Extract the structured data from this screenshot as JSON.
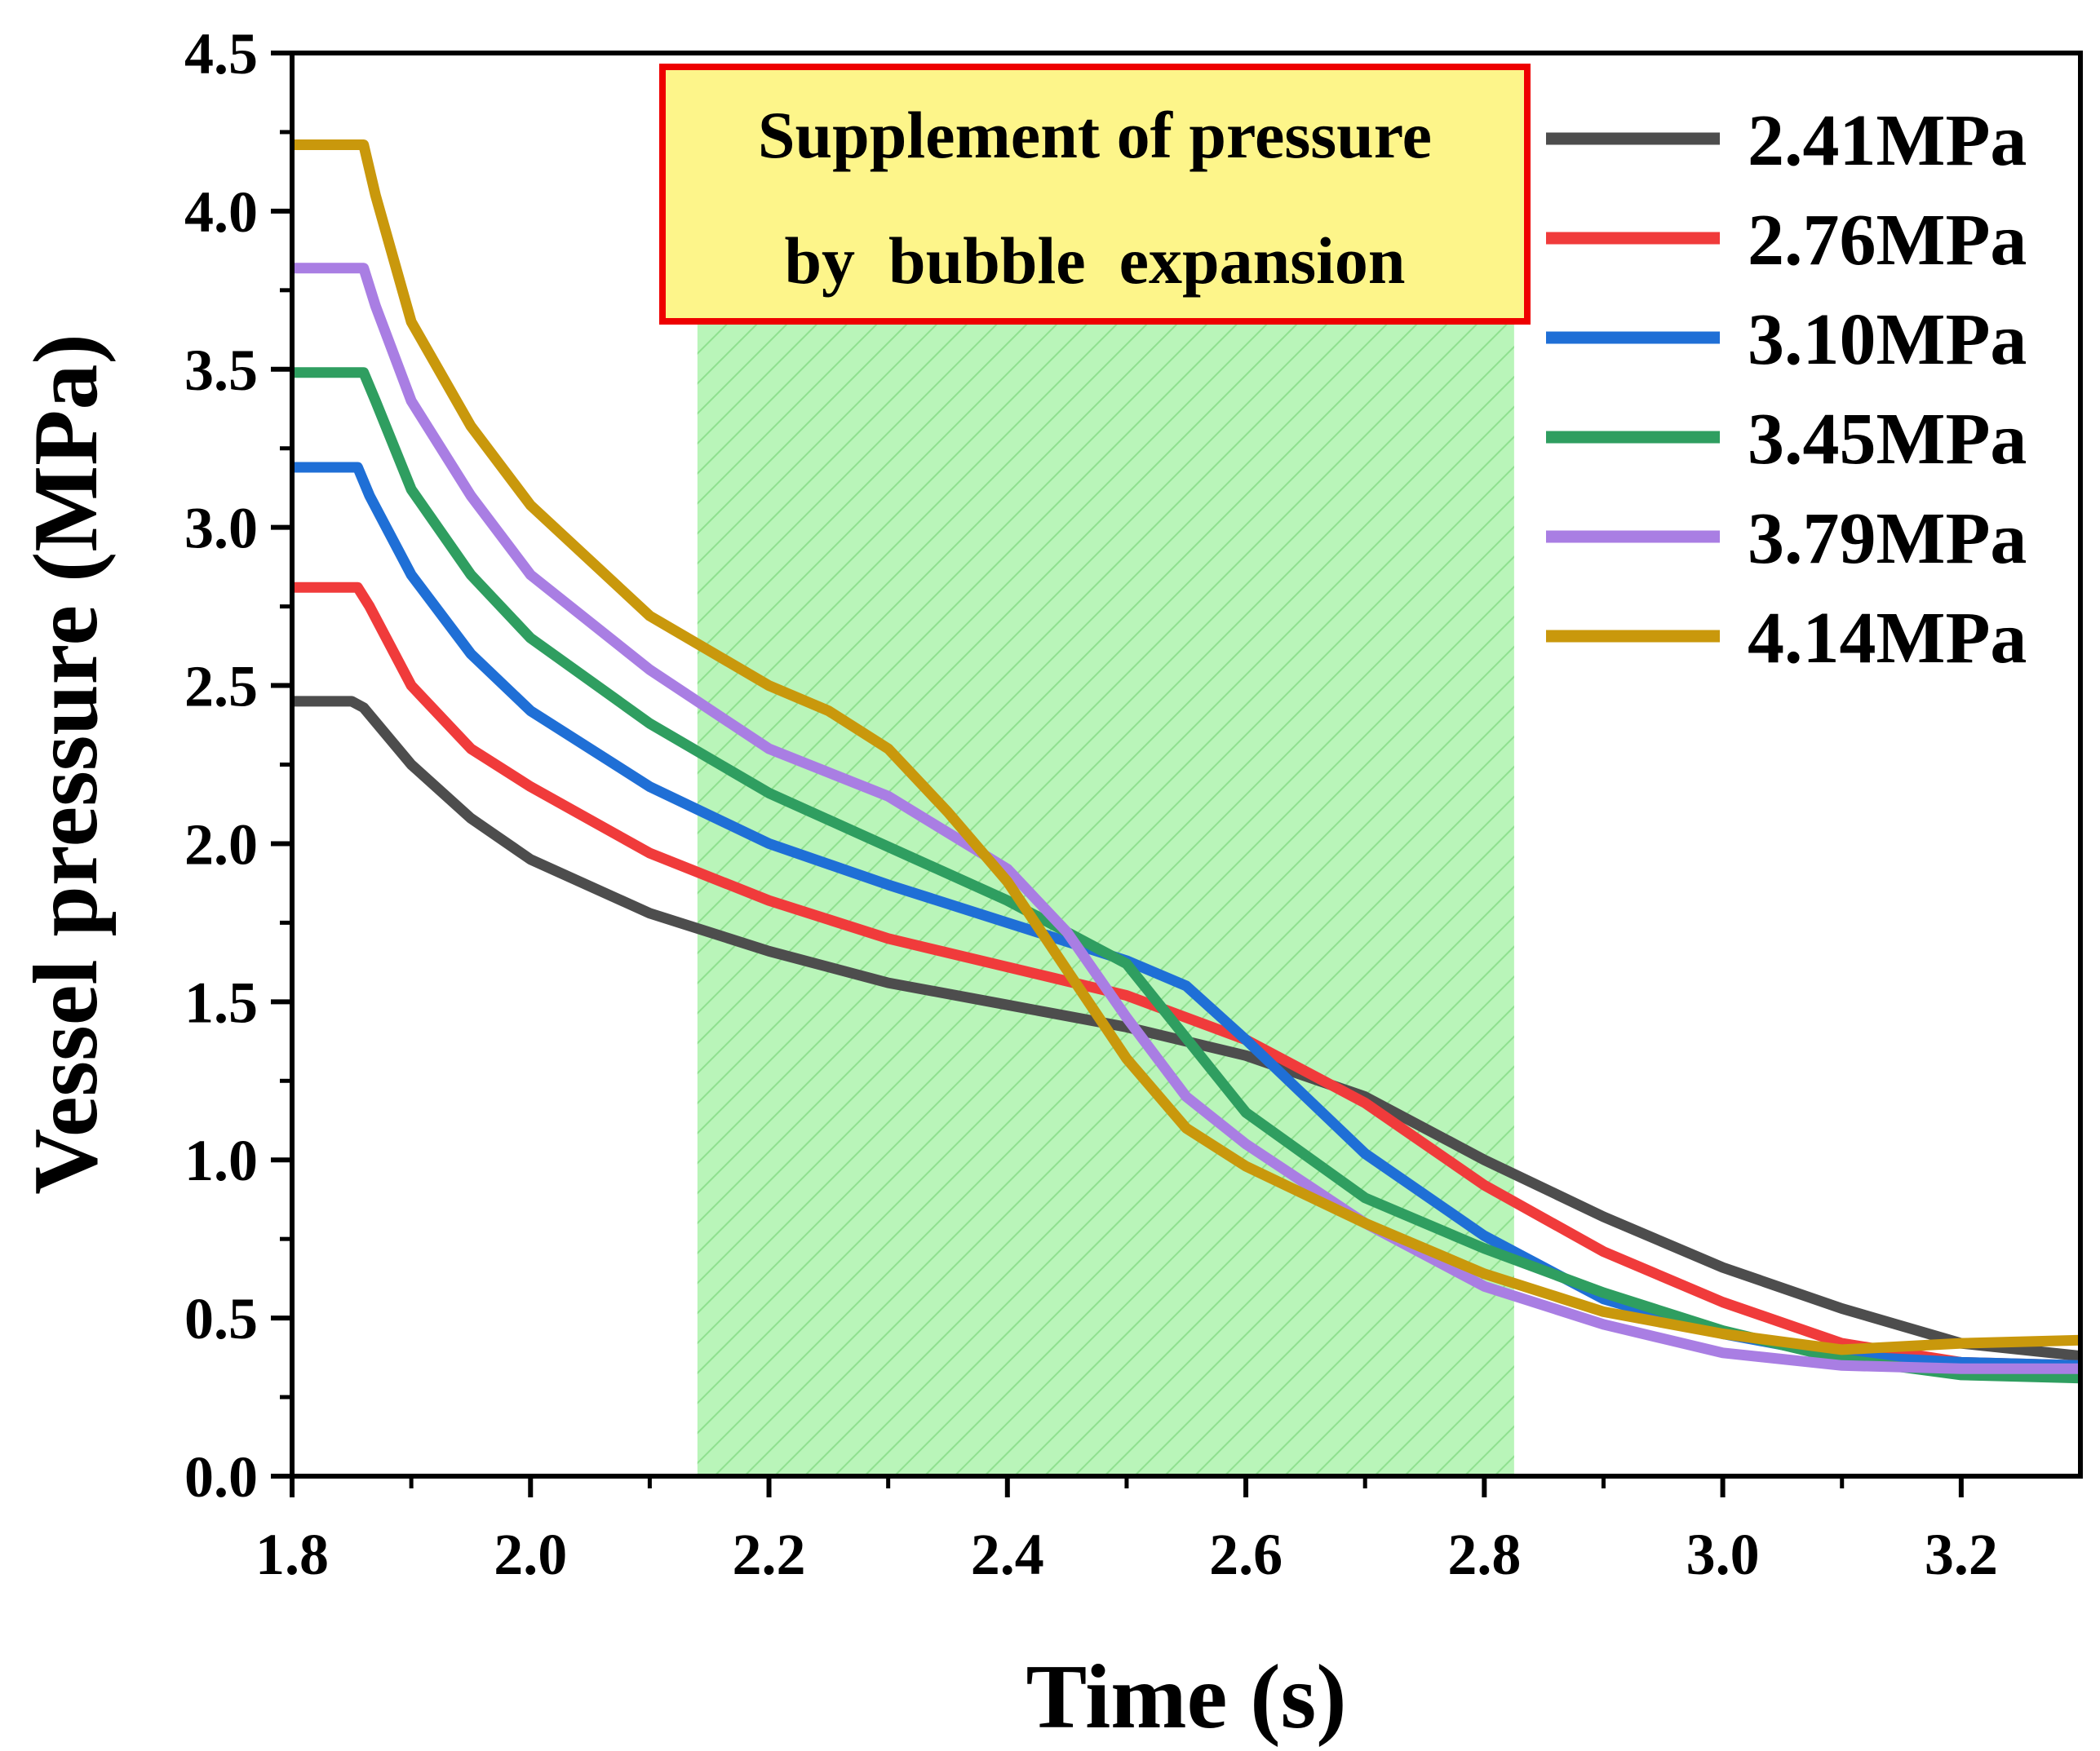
{
  "chart_data": {
    "type": "line",
    "title": "",
    "xlabel": "Time (s)",
    "ylabel": "Vessel pressure (MPa)",
    "xlim": [
      1.8,
      3.3
    ],
    "ylim": [
      0.0,
      4.5
    ],
    "xticks": [
      "1.8",
      "2.0",
      "2.2",
      "2.4",
      "2.6",
      "2.8",
      "3.0",
      "3.2"
    ],
    "yticks": [
      "0.0",
      "0.5",
      "1.0",
      "1.5",
      "2.0",
      "2.5",
      "3.0",
      "3.5",
      "4.0",
      "4.5"
    ],
    "grid": false,
    "legend_position": "top-right",
    "shaded_region": {
      "x_start": 2.14,
      "x_end": 2.825,
      "color": "#b9f5b9"
    },
    "annotation": {
      "lines": [
        "Supplement of pressure",
        "by  bubble  expansion"
      ],
      "fill": "#fdf58a",
      "border": "#ee0000"
    },
    "series": [
      {
        "name": "2.41MPa",
        "color": "#4d4d4d",
        "x": [
          1.8,
          1.85,
          1.86,
          1.9,
          1.95,
          2.0,
          2.1,
          2.2,
          2.3,
          2.4,
          2.5,
          2.6,
          2.7,
          2.8,
          2.9,
          3.0,
          3.1,
          3.2,
          3.3
        ],
        "y": [
          2.45,
          2.45,
          2.43,
          2.25,
          2.08,
          1.95,
          1.78,
          1.66,
          1.56,
          1.49,
          1.42,
          1.33,
          1.2,
          1.0,
          0.82,
          0.66,
          0.53,
          0.42,
          0.38
        ]
      },
      {
        "name": "2.76MPa",
        "color": "#f03b3b",
        "x": [
          1.8,
          1.855,
          1.865,
          1.9,
          1.95,
          2.0,
          2.1,
          2.2,
          2.3,
          2.4,
          2.5,
          2.6,
          2.7,
          2.8,
          2.9,
          3.0,
          3.1,
          3.2,
          3.3
        ],
        "y": [
          2.81,
          2.81,
          2.75,
          2.5,
          2.3,
          2.18,
          1.97,
          1.82,
          1.7,
          1.61,
          1.52,
          1.38,
          1.18,
          0.92,
          0.71,
          0.55,
          0.42,
          0.36,
          0.35
        ]
      },
      {
        "name": "3.10MPa",
        "color": "#1f6fd6",
        "x": [
          1.8,
          1.855,
          1.865,
          1.9,
          1.95,
          2.0,
          2.1,
          2.2,
          2.3,
          2.4,
          2.5,
          2.55,
          2.6,
          2.7,
          2.8,
          2.9,
          3.0,
          3.1,
          3.2,
          3.3
        ],
        "y": [
          3.19,
          3.19,
          3.1,
          2.85,
          2.6,
          2.42,
          2.18,
          2.0,
          1.87,
          1.75,
          1.63,
          1.55,
          1.38,
          1.02,
          0.76,
          0.56,
          0.45,
          0.38,
          0.36,
          0.35
        ]
      },
      {
        "name": "3.45MPa",
        "color": "#2f9e60",
        "x": [
          1.8,
          1.86,
          1.87,
          1.9,
          1.95,
          2.0,
          2.1,
          2.2,
          2.3,
          2.4,
          2.5,
          2.6,
          2.7,
          2.8,
          2.9,
          3.0,
          3.1,
          3.2,
          3.3
        ],
        "y": [
          3.49,
          3.49,
          3.4,
          3.12,
          2.85,
          2.65,
          2.38,
          2.16,
          1.99,
          1.82,
          1.62,
          1.15,
          0.88,
          0.72,
          0.58,
          0.46,
          0.37,
          0.32,
          0.31
        ]
      },
      {
        "name": "3.79MPa",
        "color": "#a97ee3",
        "x": [
          1.8,
          1.86,
          1.87,
          1.9,
          1.95,
          2.0,
          2.1,
          2.2,
          2.3,
          2.4,
          2.45,
          2.5,
          2.55,
          2.6,
          2.7,
          2.8,
          2.9,
          3.0,
          3.1,
          3.2,
          3.3
        ],
        "y": [
          3.82,
          3.82,
          3.7,
          3.4,
          3.1,
          2.85,
          2.55,
          2.3,
          2.15,
          1.92,
          1.72,
          1.45,
          1.2,
          1.05,
          0.8,
          0.6,
          0.48,
          0.39,
          0.35,
          0.34,
          0.34
        ]
      },
      {
        "name": "4.14MPa",
        "color": "#c9980c",
        "x": [
          1.8,
          1.86,
          1.87,
          1.9,
          1.95,
          2.0,
          2.1,
          2.2,
          2.25,
          2.3,
          2.35,
          2.4,
          2.45,
          2.5,
          2.55,
          2.6,
          2.7,
          2.8,
          2.9,
          3.0,
          3.1,
          3.2,
          3.3
        ],
        "y": [
          4.21,
          4.21,
          4.05,
          3.65,
          3.32,
          3.07,
          2.72,
          2.5,
          2.42,
          2.3,
          2.1,
          1.88,
          1.6,
          1.32,
          1.1,
          0.98,
          0.8,
          0.64,
          0.52,
          0.45,
          0.4,
          0.42,
          0.43
        ]
      }
    ]
  }
}
